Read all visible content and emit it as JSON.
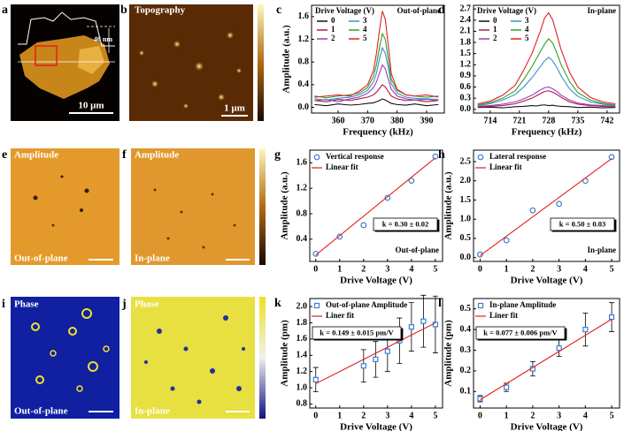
{
  "images": [
    {
      "label": "a",
      "texts": [
        "46 nm",
        "10 μm"
      ]
    },
    {
      "label": "b",
      "texts": [
        "Topography",
        "1 μm"
      ]
    },
    {
      "label": "e",
      "texts": [
        "Amplitude",
        "Out-of-plane"
      ]
    },
    {
      "label": "f",
      "texts": [
        "Amplitude",
        "In-plane"
      ]
    },
    {
      "label": "i",
      "texts": [
        "Phase",
        "Out-of-plane"
      ]
    },
    {
      "label": "j",
      "texts": [
        "Phase",
        "In-plane"
      ]
    }
  ],
  "chart_data": [
    {
      "label": "c",
      "type": "line",
      "xlabel": "Frequency (kHz)",
      "ylabel": "Amplitude (a.u.)",
      "legend_title": "Drive Voltage (V)",
      "corner_label": "Out-of-plane",
      "xlim": [
        351,
        396
      ],
      "ylim": [
        -0.1,
        1.8
      ],
      "xticks": [
        360,
        370,
        380,
        390
      ],
      "yticks": [
        {
          "value": 0,
          "label": "0.0"
        },
        0.4,
        0.8,
        1.2,
        1.6
      ],
      "x": [
        352,
        356,
        360,
        364,
        367,
        370,
        372,
        373,
        374,
        375,
        376,
        377,
        378,
        380,
        383,
        386,
        390,
        394
      ],
      "series": [
        {
          "name": "0",
          "color": "#111111",
          "values": [
            0.05,
            0.03,
            0.06,
            0.04,
            0.05,
            0.07,
            0.08,
            0.1,
            0.12,
            0.15,
            0.13,
            0.1,
            0.07,
            0.05,
            0.04,
            0.06,
            0.03,
            0.05
          ]
        },
        {
          "name": "1",
          "color": "#b0174f",
          "values": [
            0.12,
            0.1,
            0.14,
            0.12,
            0.15,
            0.18,
            0.22,
            0.27,
            0.33,
            0.4,
            0.36,
            0.28,
            0.2,
            0.15,
            0.12,
            0.13,
            0.1,
            0.12
          ]
        },
        {
          "name": "2",
          "color": "#9a3cb3",
          "values": [
            0.12,
            0.14,
            0.1,
            0.15,
            0.18,
            0.25,
            0.35,
            0.45,
            0.6,
            0.75,
            0.68,
            0.5,
            0.32,
            0.2,
            0.15,
            0.13,
            0.14,
            0.12
          ]
        },
        {
          "name": "3",
          "color": "#3a8fc8",
          "values": [
            0.15,
            0.13,
            0.16,
            0.18,
            0.22,
            0.3,
            0.45,
            0.6,
            0.85,
            1.05,
            0.95,
            0.7,
            0.42,
            0.25,
            0.18,
            0.16,
            0.15,
            0.14
          ]
        },
        {
          "name": "4",
          "color": "#2ca02c",
          "values": [
            0.2,
            0.17,
            0.2,
            0.22,
            0.25,
            0.35,
            0.55,
            0.75,
            1.05,
            1.3,
            1.2,
            0.85,
            0.5,
            0.3,
            0.22,
            0.2,
            0.18,
            0.2
          ]
        },
        {
          "name": "5",
          "color": "#e0201f",
          "values": [
            0.18,
            0.2,
            0.22,
            0.2,
            0.28,
            0.4,
            0.65,
            0.95,
            1.35,
            1.7,
            1.55,
            1.1,
            0.6,
            0.32,
            0.22,
            0.2,
            0.22,
            0.18
          ]
        }
      ]
    },
    {
      "label": "d",
      "type": "line",
      "xlabel": "Frequency (kHz)",
      "legend_title": "Drive Voltage (V)",
      "corner_label": "In-plane",
      "xlim": [
        710,
        745
      ],
      "ylim": [
        -0.1,
        2.8
      ],
      "xticks": [
        714,
        721,
        728,
        735,
        742
      ],
      "yticks": [
        {
          "value": 0,
          "label": "0.0"
        },
        0.3,
        0.6,
        0.9,
        1.2,
        1.5,
        1.8,
        2.1,
        2.4,
        2.7
      ],
      "x": [
        711,
        714,
        717,
        720,
        722,
        724,
        725,
        726,
        727,
        728,
        729,
        730,
        731,
        733,
        735,
        738,
        741,
        744
      ],
      "series": [
        {
          "name": "0",
          "color": "#111111",
          "values": [
            0.05,
            0.06,
            0.04,
            0.07,
            0.08,
            0.1,
            0.09,
            0.11,
            0.12,
            0.1,
            0.11,
            0.09,
            0.08,
            0.07,
            0.05,
            0.06,
            0.04,
            0.05
          ]
        },
        {
          "name": "1",
          "color": "#b0174f",
          "values": [
            0.06,
            0.08,
            0.1,
            0.15,
            0.22,
            0.3,
            0.36,
            0.42,
            0.48,
            0.5,
            0.46,
            0.4,
            0.32,
            0.2,
            0.14,
            0.1,
            0.08,
            0.07
          ]
        },
        {
          "name": "2",
          "color": "#9a3cb3",
          "values": [
            0.08,
            0.1,
            0.14,
            0.2,
            0.28,
            0.38,
            0.45,
            0.52,
            0.58,
            0.6,
            0.55,
            0.48,
            0.38,
            0.25,
            0.17,
            0.12,
            0.1,
            0.08
          ]
        },
        {
          "name": "3",
          "color": "#3a8fc8",
          "values": [
            0.1,
            0.15,
            0.25,
            0.4,
            0.6,
            0.85,
            1.0,
            1.15,
            1.3,
            1.4,
            1.3,
            1.12,
            0.9,
            0.55,
            0.35,
            0.2,
            0.14,
            0.1
          ]
        },
        {
          "name": "4",
          "color": "#2ca02c",
          "values": [
            0.12,
            0.18,
            0.3,
            0.5,
            0.8,
            1.15,
            1.35,
            1.55,
            1.75,
            1.9,
            1.78,
            1.5,
            1.2,
            0.75,
            0.45,
            0.25,
            0.16,
            0.12
          ]
        },
        {
          "name": "5",
          "color": "#e0201f",
          "values": [
            0.15,
            0.22,
            0.38,
            0.65,
            1.05,
            1.5,
            1.8,
            2.1,
            2.45,
            2.6,
            2.4,
            2.0,
            1.6,
            1.0,
            0.6,
            0.32,
            0.2,
            0.15
          ]
        }
      ]
    },
    {
      "label": "g",
      "type": "scatter",
      "xlabel": "Drive Voltage (V)",
      "ylabel": "Amplitude (a.u.)",
      "annotation": "k = 0.30 ± 0.02",
      "corner_label": "Out-of-plane",
      "xlim": [
        -0.25,
        5.3
      ],
      "ylim": [
        0.05,
        1.8
      ],
      "xticks": [
        0,
        1,
        2,
        3,
        4,
        5
      ],
      "yticks": [
        0.4,
        0.8,
        1.2,
        1.6
      ],
      "series": [
        {
          "name": "Vertical response",
          "color": "#3a7fd5",
          "marker": "circle",
          "x": [
            0,
            1,
            2,
            3,
            4,
            5
          ],
          "values": [
            0.17,
            0.44,
            0.62,
            1.05,
            1.32,
            1.7
          ]
        },
        {
          "name": "Linear fit",
          "color": "#e0201f",
          "x": [
            0,
            5
          ],
          "values": [
            0.15,
            1.68
          ]
        }
      ]
    },
    {
      "label": "h",
      "type": "scatter",
      "xlabel": "Drive Voltage (V)",
      "ylabel": "Amplitude (a.u.)",
      "annotation": "k = 0.50 ± 0.03",
      "corner_label": "In-plane",
      "xlim": [
        -0.25,
        5.3
      ],
      "ylim": [
        -0.1,
        2.8
      ],
      "xticks": [
        0,
        1,
        2,
        3,
        4,
        5
      ],
      "yticks": [
        {
          "value": 0,
          "label": "0.0"
        },
        0.5,
        {
          "value": 1,
          "label": "1.0"
        },
        1.5,
        {
          "value": 2,
          "label": "2.0"
        },
        2.5
      ],
      "series": [
        {
          "name": "Lateral response",
          "color": "#3a7fd5",
          "marker": "circle",
          "x": [
            0,
            1,
            2,
            3,
            4,
            5
          ],
          "values": [
            0.08,
            0.45,
            1.23,
            1.4,
            2.0,
            2.62
          ]
        },
        {
          "name": "Linear fit",
          "color": "#e0201f",
          "x": [
            0,
            5
          ],
          "values": [
            0.05,
            2.58
          ]
        }
      ]
    },
    {
      "label": "k",
      "type": "scatter",
      "xlabel": "Drive Voltage (V)",
      "ylabel": "Amplitude (pm)",
      "annotation": "k = 0.149 ± 0.015 pm/V",
      "xlim": [
        -0.25,
        5.3
      ],
      "ylim": [
        0.75,
        2.1
      ],
      "xticks": [
        0,
        1,
        2,
        3,
        4,
        5
      ],
      "yticks": [
        0.8,
        {
          "value": 1,
          "label": "1.0"
        },
        1.2,
        1.4,
        1.6,
        1.8,
        {
          "value": 2,
          "label": "2.0"
        }
      ],
      "series": [
        {
          "name": "Out-of-plane Amplitude",
          "color": "#3a7fd5",
          "marker": "square",
          "x": [
            0,
            2,
            2.5,
            3,
            3.5,
            4,
            4.5,
            5
          ],
          "values": [
            1.1,
            1.27,
            1.35,
            1.45,
            1.58,
            1.75,
            1.82,
            1.78
          ],
          "errors": [
            0.15,
            0.2,
            0.22,
            0.25,
            0.28,
            0.3,
            0.32,
            0.35
          ]
        },
        {
          "name": "Liner fit",
          "color": "#e0201f",
          "x": [
            0,
            5
          ],
          "values": [
            1.05,
            1.8
          ]
        }
      ]
    },
    {
      "label": "l",
      "type": "scatter",
      "xlabel": "Drive Voltage (V)",
      "ylabel": "Amplitude (pm)",
      "annotation": "k = 0.077 ± 0.006 pm/V",
      "xlim": [
        -0.25,
        5.3
      ],
      "ylim": [
        0.02,
        0.55
      ],
      "xticks": [
        0,
        1,
        2,
        3,
        4,
        5
      ],
      "yticks": [
        0.1,
        0.2,
        0.3,
        0.4,
        0.5
      ],
      "series": [
        {
          "name": "In-plane Amplitude",
          "color": "#3a7fd5",
          "marker": "square",
          "x": [
            0,
            1,
            2,
            3,
            4,
            5
          ],
          "values": [
            0.065,
            0.12,
            0.21,
            0.31,
            0.4,
            0.46
          ],
          "errors": [
            0.015,
            0.02,
            0.035,
            0.04,
            0.08,
            0.07
          ]
        },
        {
          "name": "Liner fit",
          "color": "#e0201f",
          "x": [
            0,
            5
          ],
          "values": [
            0.06,
            0.45
          ]
        }
      ]
    }
  ]
}
